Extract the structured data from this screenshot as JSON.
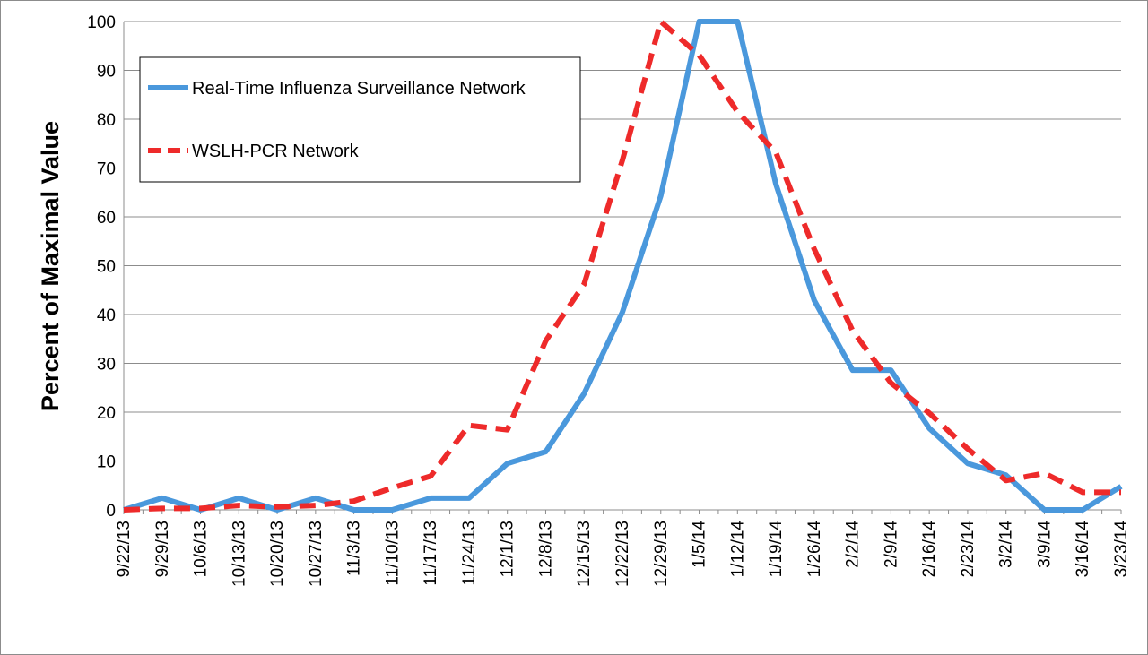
{
  "chart_data": {
    "type": "line",
    "title": "",
    "xlabel": "",
    "ylabel": "Percent of Maximal Value",
    "ylim": [
      0,
      100
    ],
    "yticks": [
      0,
      10,
      20,
      30,
      40,
      50,
      60,
      70,
      80,
      90,
      100
    ],
    "grid": true,
    "legend_position": "top-left",
    "categories": [
      "9/22/13",
      "9/29/13",
      "10/6/13",
      "10/13/13",
      "10/20/13",
      "10/27/13",
      "11/3/13",
      "11/10/13",
      "11/17/13",
      "11/24/13",
      "12/1/13",
      "12/8/13",
      "12/15/13",
      "12/22/13",
      "12/29/13",
      "1/5/14",
      "1/12/14",
      "1/19/14",
      "1/26/14",
      "2/2/14",
      "2/9/14",
      "2/16/14",
      "2/23/14",
      "3/2/14",
      "3/9/14",
      "3/16/14",
      "3/23/14"
    ],
    "x_half_steps": [
      0,
      0.5,
      1,
      1.5,
      2,
      2.5,
      3,
      3.5,
      4,
      4.5,
      5,
      5.5,
      6,
      6.5,
      7,
      7.5,
      8,
      8.5,
      9,
      9.5,
      10,
      10.5,
      11,
      11.5,
      12,
      12.5,
      13,
      13.5,
      14,
      14.5,
      15,
      15.5,
      16,
      16.5,
      17,
      17.5,
      18,
      18.5,
      19,
      19.5,
      20,
      20.5,
      21,
      21.5,
      22,
      22.5,
      23,
      23.5,
      24,
      24.5,
      25,
      25.5,
      26
    ],
    "series": [
      {
        "name": "Real-Time Influenza Surveillance Network",
        "color": "#4a98dc",
        "style": "solid",
        "values": [
          0,
          2.4,
          0,
          2.4,
          0,
          2.4,
          0,
          0,
          2.4,
          2.4,
          9.5,
          11.9,
          23.8,
          40.5,
          64.3,
          100,
          100,
          66.7,
          42.9,
          28.6,
          28.6,
          16.7,
          9.5,
          7.1,
          0,
          0,
          4.8
        ]
      },
      {
        "name": "WSLH-PCR Network",
        "color": "#ee2a2a",
        "style": "dashed",
        "values": [
          0,
          0.3,
          0.3,
          0.9,
          0.6,
          0.9,
          1.8,
          4.5,
          6.9,
          17.3,
          16.4,
          34.6,
          46.2,
          71.6,
          100,
          93.1,
          81.5,
          73.2,
          53.4,
          36.7,
          26.0,
          19.8,
          12.5,
          6.0,
          7.5,
          3.6,
          3.6
        ]
      }
    ]
  }
}
